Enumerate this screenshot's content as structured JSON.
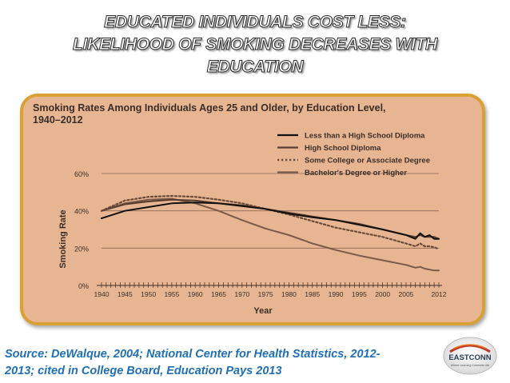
{
  "slide": {
    "title_lines": [
      "EDUCATED INDIVIDUALS COST LESS:",
      "LIKELIHOOD OF SMOKING DECREASES WITH",
      "EDUCATION"
    ],
    "source_text": "Source: DeWalque, 2004; National Center for Health Statistics, 2012-2013; cited in College Board, Education Pays 2013",
    "logo_text": "EASTCONN",
    "logo_tagline": "Where Learning Connects Life"
  },
  "colors": {
    "panel_bg": "#E8B593",
    "panel_border": "#D9A133",
    "title_fill": "#ffffff",
    "source_text": "#1F6FB5",
    "series_less_than_hs": "#111111",
    "series_hs_diploma": "#5a3d2e",
    "series_some_college": "#6b4a3a",
    "series_bachelors": "#7a5a4a"
  },
  "chart_data": {
    "type": "line",
    "title": "Smoking Rates Among Individuals Ages 25 and Older, by Education Level, 1940–2012",
    "title_lines": [
      "Smoking Rates Among Individuals Ages 25 and Older, by Education Level,",
      "1940–2012"
    ],
    "xlabel": "Year",
    "ylabel": "Smoking Rate",
    "xlim": [
      1940,
      2012
    ],
    "ylim": [
      0,
      60
    ],
    "xticks": [
      1940,
      1945,
      1950,
      1955,
      1960,
      1965,
      1970,
      1975,
      1980,
      1985,
      1990,
      1995,
      2000,
      2005,
      2012
    ],
    "yticks": [
      {
        "value": 0,
        "label": "0%"
      },
      {
        "value": 20,
        "label": "20%"
      },
      {
        "value": 40,
        "label": "40%"
      },
      {
        "value": 60,
        "label": "60%"
      }
    ],
    "legend_position": "top-right",
    "x": [
      1940,
      1945,
      1950,
      1955,
      1960,
      1965,
      1970,
      1975,
      1980,
      1985,
      1990,
      1995,
      2000,
      2005,
      2007,
      2008,
      2009,
      2010,
      2011,
      2012
    ],
    "series": [
      {
        "name": "Less than a High School Diploma",
        "style": "solid",
        "values": [
          36,
          40,
          42,
          44,
          44.5,
          44,
          42.5,
          41,
          38.5,
          36.5,
          35,
          32.5,
          30,
          27,
          25,
          28,
          26,
          27,
          25,
          25
        ]
      },
      {
        "name": "High School Diploma",
        "style": "solid",
        "values": [
          40,
          43.5,
          45,
          46,
          45.5,
          44,
          43,
          41,
          39,
          37,
          35,
          33,
          30,
          27,
          26,
          27,
          26,
          26,
          26,
          25
        ]
      },
      {
        "name": "Some College or Associate Degree",
        "style": "dotted",
        "values": [
          40,
          45.5,
          47.5,
          48,
          47.5,
          46,
          44,
          41,
          38,
          34.5,
          31,
          28.5,
          26,
          22.5,
          21,
          22.5,
          21,
          21,
          20.5,
          19.5
        ]
      },
      {
        "name": "Bachelor's Degree or Higher",
        "style": "solid-light",
        "values": [
          40,
          44,
          46,
          46.5,
          44,
          40,
          35,
          30.5,
          27,
          22.5,
          19,
          16,
          13.5,
          11,
          9.5,
          10,
          9,
          8.5,
          8,
          8
        ]
      }
    ]
  }
}
